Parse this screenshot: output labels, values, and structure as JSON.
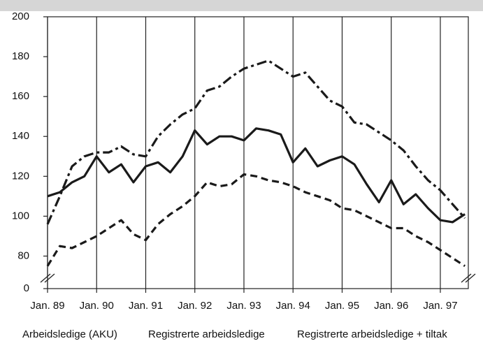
{
  "chart_data": {
    "type": "line",
    "x": [
      1989,
      1989.25,
      1989.5,
      1989.75,
      1990,
      1990.25,
      1990.5,
      1990.75,
      1991,
      1991.25,
      1991.5,
      1991.75,
      1992,
      1992.25,
      1992.5,
      1992.75,
      1993,
      1993.25,
      1993.5,
      1993.75,
      1994,
      1994.25,
      1994.5,
      1994.75,
      1995,
      1995.25,
      1995.5,
      1995.75,
      1996,
      1996.25,
      1996.5,
      1996.75,
      1997,
      1997.25,
      1997.5
    ],
    "series": [
      {
        "name": "Arbeidsledige (AKU)",
        "color": "#1a1a1a",
        "style": "solid",
        "values": [
          110,
          112,
          117,
          120,
          130,
          122,
          126,
          117,
          125,
          127,
          122,
          130,
          143,
          136,
          140,
          140,
          138,
          144,
          143,
          141,
          127,
          134,
          125,
          128,
          130,
          126,
          116,
          107,
          118,
          106,
          111,
          104,
          98,
          97,
          101
        ]
      },
      {
        "name": "Registrerte arbeidsledige",
        "color": "#1a1a1a",
        "style": "dashed",
        "values": [
          75,
          85,
          84,
          87,
          90,
          94,
          98,
          91,
          88,
          96,
          101,
          105,
          110,
          117,
          115,
          116,
          121,
          120,
          118,
          117,
          115,
          112,
          110,
          108,
          104,
          103,
          100,
          97,
          94,
          94,
          90,
          87,
          83,
          79,
          75
        ]
      },
      {
        "name": "Registrerte arbeidsledige + tiltak",
        "color": "#1a1a1a",
        "style": "dashdot",
        "values": [
          96,
          110,
          125,
          130,
          132,
          132,
          135,
          131,
          130,
          140,
          146,
          151,
          154,
          163,
          165,
          170,
          174,
          176,
          178,
          174,
          170,
          172,
          165,
          158,
          155,
          147,
          146,
          142,
          138,
          133,
          125,
          118,
          113,
          106,
          99
        ]
      }
    ],
    "xlim": [
      1989,
      1997.57
    ],
    "xticks": [
      {
        "value": 1989,
        "label": "Jan. 89"
      },
      {
        "value": 1990,
        "label": "Jan. 90"
      },
      {
        "value": 1991,
        "label": "Jan. 91"
      },
      {
        "value": 1992,
        "label": "Jan. 92"
      },
      {
        "value": 1993,
        "label": "Jan. 93"
      },
      {
        "value": 1994,
        "label": "Jan. 94"
      },
      {
        "value": 1995,
        "label": "Jan. 95"
      },
      {
        "value": 1996,
        "label": "Jan. 96"
      },
      {
        "value": 1997,
        "label": "Jan. 97"
      }
    ],
    "ylim": [
      0,
      200
    ],
    "yticks": [
      0,
      80,
      100,
      120,
      140,
      160,
      180,
      200
    ],
    "y_break": [
      0,
      70
    ],
    "grid": "x"
  }
}
